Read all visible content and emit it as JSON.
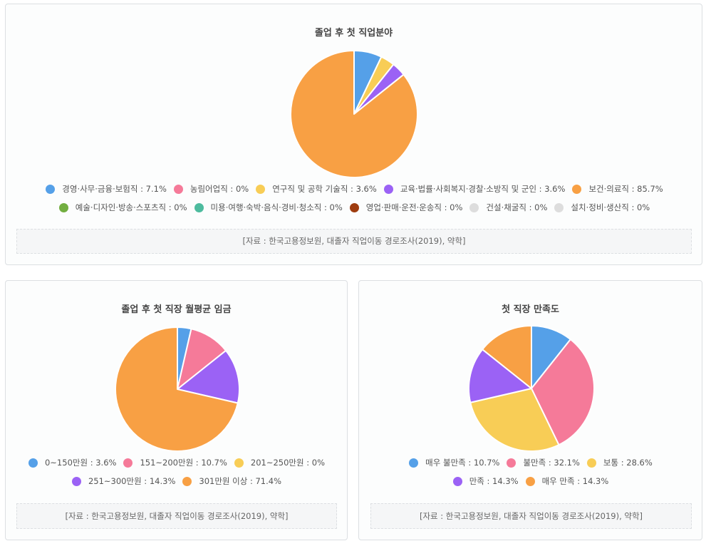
{
  "chart_data": [
    {
      "id": "job",
      "type": "pie",
      "title": "졸업 후 첫 직업분야",
      "slices": [
        {
          "label": "경영·사무·금융·보험직 : 7.1%",
          "value": 7.1,
          "color": "#55a0e8"
        },
        {
          "label": "농림어업직 : 0%",
          "value": 0,
          "color": "#f57a99"
        },
        {
          "label": "연구직 및 공학 기술직 : 3.6%",
          "value": 3.6,
          "color": "#f8cd56"
        },
        {
          "label": "교육·법률·사회복지·경찰·소방직 및 군인 : 3.6%",
          "value": 3.6,
          "color": "#9b62f5"
        },
        {
          "label": "보건·의료직 : 85.7%",
          "value": 85.7,
          "color": "#f8a044"
        },
        {
          "label": "예술·디자인·방송·스포츠직 : 0%",
          "value": 0,
          "color": "#72ae40"
        },
        {
          "label": "미용·여행·숙박·음식·경비·청소직 : 0%",
          "value": 0,
          "color": "#4dbb9e"
        },
        {
          "label": "영업·판매·운전·운송직 : 0%",
          "value": 0,
          "color": "#9e3c0f"
        },
        {
          "label": "건설·채굴직 : 0%",
          "value": 0,
          "color": "#dddddd"
        },
        {
          "label": "설치·정비·생산직 : 0%",
          "value": 0,
          "color": "#dddddd"
        }
      ],
      "source": "[자료 : 한국고용정보원, 대졸자 직업이동 경로조사(2019), 약학]"
    },
    {
      "id": "wage",
      "type": "pie",
      "title": "졸업 후 첫 직장 월평균 임금",
      "slices": [
        {
          "label": "0~150만원 : 3.6%",
          "value": 3.6,
          "color": "#55a0e8"
        },
        {
          "label": "151~200만원 : 10.7%",
          "value": 10.7,
          "color": "#f57a99"
        },
        {
          "label": "201~250만원 : 0%",
          "value": 0,
          "color": "#f8cd56"
        },
        {
          "label": "251~300만원 : 14.3%",
          "value": 14.3,
          "color": "#9b62f5"
        },
        {
          "label": "301만원 이상 : 71.4%",
          "value": 71.4,
          "color": "#f8a044"
        }
      ],
      "source": "[자료 : 한국고용정보원, 대졸자 직업이동 경로조사(2019), 약학]"
    },
    {
      "id": "satisfaction",
      "type": "pie",
      "title": "첫 직장 만족도",
      "slices": [
        {
          "label": "매우 불만족 : 10.7%",
          "value": 10.7,
          "color": "#55a0e8"
        },
        {
          "label": "불만족 : 32.1%",
          "value": 32.1,
          "color": "#f57a99"
        },
        {
          "label": "보통 : 28.6%",
          "value": 28.6,
          "color": "#f8cd56"
        },
        {
          "label": "만족 : 14.3%",
          "value": 14.3,
          "color": "#9b62f5"
        },
        {
          "label": "매우 만족 : 14.3%",
          "value": 14.3,
          "color": "#f8a044"
        }
      ],
      "source": "[자료 : 한국고용정보원, 대졸자 직업이동 경로조사(2019), 약학]"
    }
  ]
}
